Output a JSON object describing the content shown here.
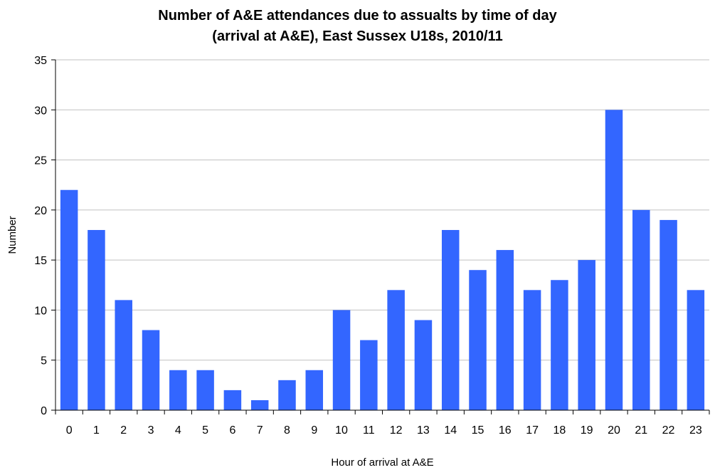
{
  "chart_data": {
    "type": "bar",
    "title_line1": "Number of A&E attendances due to assualts by time of day",
    "title_line2": "(arrival at A&E), East Sussex U18s, 2010/11",
    "xlabel": "Hour of arrival at A&E",
    "ylabel": "Number",
    "categories": [
      "0",
      "1",
      "2",
      "3",
      "4",
      "5",
      "6",
      "7",
      "8",
      "9",
      "10",
      "11",
      "12",
      "13",
      "14",
      "15",
      "16",
      "17",
      "18",
      "19",
      "20",
      "21",
      "22",
      "23"
    ],
    "values": [
      22,
      18,
      11,
      8,
      4,
      4,
      2,
      1,
      3,
      4,
      10,
      7,
      12,
      9,
      18,
      14,
      16,
      12,
      13,
      15,
      30,
      20,
      19,
      12
    ],
    "ylim": [
      0,
      35
    ],
    "yticks": [
      0,
      5,
      10,
      15,
      20,
      25,
      30,
      35
    ],
    "grid": true,
    "legend": "none",
    "bar_color": "#3366ff"
  }
}
